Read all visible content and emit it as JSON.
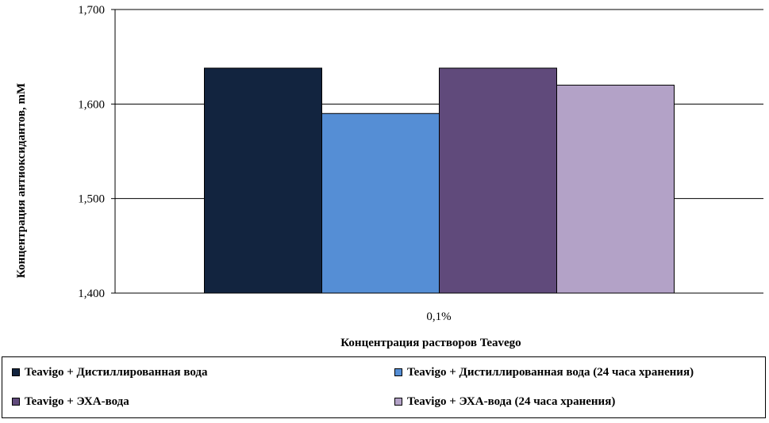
{
  "chart_data": {
    "type": "bar",
    "categories": [
      "0,1%"
    ],
    "series": [
      {
        "name": "Teavigo + Дистиллированная вода",
        "values": [
          1.638
        ],
        "color": "#12243f"
      },
      {
        "name": "Teavigo + Дистиллированная вода (24 часа хранения)",
        "values": [
          1.59
        ],
        "color": "#558ed5"
      },
      {
        "name": "Teavigo + ЭХА-вода",
        "values": [
          1.638
        ],
        "color": "#604a7b"
      },
      {
        "name": "Teavigo + ЭХА-вода (24 часа хранения)",
        "values": [
          1.62
        ],
        "color": "#b3a2c7"
      }
    ],
    "xlabel": "Концентрация растворов Teavego",
    "ylabel": "Концентрация антиоксидантов, mM",
    "ylim": [
      1.4,
      1.7
    ],
    "yticks": [
      "1,400",
      "1,500",
      "1,600",
      "1,700"
    ],
    "grid": true,
    "legend_position": "bottom"
  }
}
